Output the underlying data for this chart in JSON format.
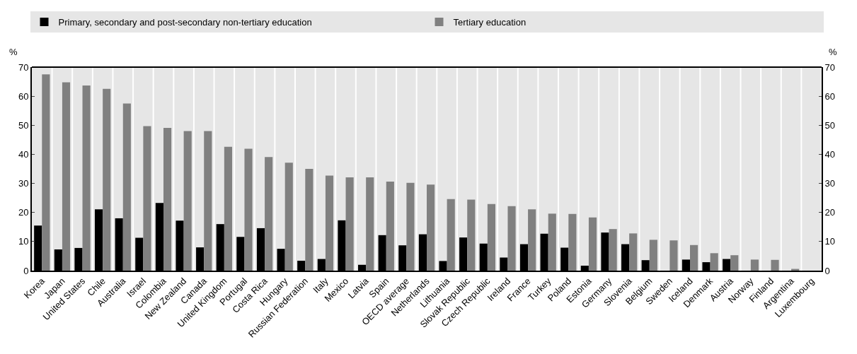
{
  "chart_data": {
    "type": "bar",
    "ylabel": "%",
    "y2label": "%",
    "categories": [
      "Korea",
      "Japan",
      "United States",
      "Chile",
      "Australia",
      "Israel",
      "Colombia",
      "New Zealand",
      "Canada",
      "United Kingdom",
      "Portugal",
      "Costa Rica",
      "Hungary",
      "Russian Federation",
      "Italy",
      "Mexico",
      "Latvia",
      "Spain",
      "OECD average",
      "Netherlands",
      "Lithuania",
      "Slovak Republic",
      "Czech Republic",
      "Ireland",
      "France",
      "Turkey",
      "Poland",
      "Estonia",
      "Germany",
      "Slovenia",
      "Belgium",
      "Sweden",
      "Iceland",
      "Denmark",
      "Austria",
      "Norway",
      "Finland",
      "Argentina",
      "Luxembourg"
    ],
    "series": [
      {
        "name": "Primary, secondary and post-secondary non-tertiary education",
        "color": "#000000",
        "values": [
          15.5,
          7.3,
          7.8,
          21.1,
          18.0,
          11.3,
          23.3,
          17.2,
          8.0,
          16.0,
          11.6,
          14.6,
          7.5,
          3.4,
          4.0,
          17.3,
          2.0,
          12.2,
          8.7,
          12.5,
          3.3,
          11.4,
          9.3,
          4.5,
          9.1,
          12.7,
          7.9,
          1.7,
          13.1,
          9.1,
          3.6,
          null,
          3.8,
          2.9,
          4.0,
          null,
          null,
          null,
          null
        ]
      },
      {
        "name": "Tertiary education",
        "color": "#808080",
        "values": [
          67.5,
          64.8,
          63.7,
          62.5,
          57.5,
          49.7,
          49.1,
          48.0,
          48.0,
          42.6,
          41.9,
          39.1,
          37.1,
          35.0,
          32.7,
          32.1,
          32.1,
          30.6,
          30.2,
          29.6,
          24.6,
          24.4,
          22.9,
          22.2,
          21.1,
          19.6,
          19.5,
          18.3,
          14.3,
          12.8,
          10.6,
          10.4,
          8.8,
          6.0,
          5.3,
          3.8,
          3.7,
          0.6,
          null
        ]
      }
    ],
    "ylim": [
      0,
      70
    ],
    "yticks": [
      0,
      10,
      20,
      30,
      40,
      50,
      60,
      70
    ],
    "y2lim": [
      0,
      70
    ],
    "y2ticks": [
      0,
      10,
      20,
      30,
      40,
      50,
      60,
      70
    ],
    "grid": "x",
    "legend": "top"
  }
}
